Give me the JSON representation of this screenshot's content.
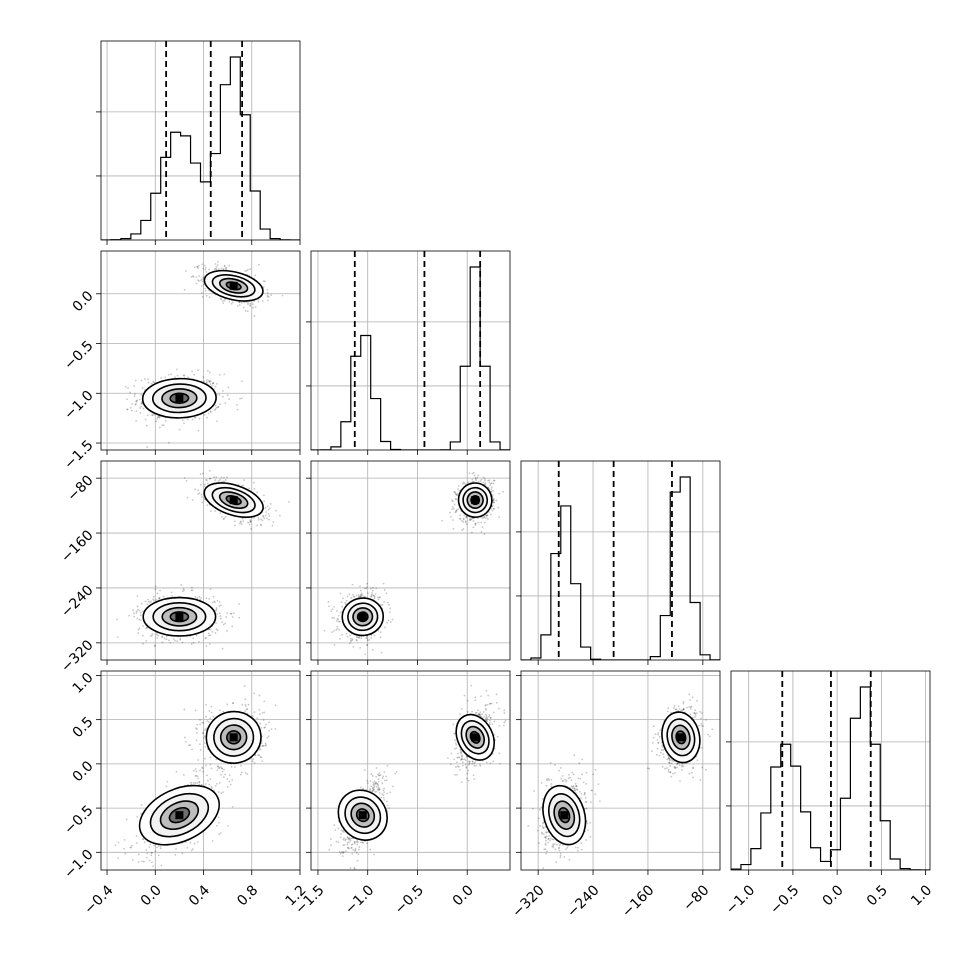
{
  "chart_data": {
    "type": "corner",
    "grid": true,
    "parameters": [
      {
        "range": [
          -0.45,
          1.2
        ],
        "ticks": [
          -0.4,
          0.0,
          0.4,
          0.8,
          1.2
        ],
        "tick_labels": [
          "−0.4",
          "0.0",
          "0.4",
          "0.8",
          "1.2"
        ],
        "quantiles": [
          0.09,
          0.46,
          0.72
        ],
        "modes": [
          {
            "w": 0.45,
            "mu": 0.2,
            "sd": 0.15
          },
          {
            "w": 0.55,
            "mu": 0.65,
            "sd": 0.11
          }
        ]
      },
      {
        "range": [
          -1.57,
          0.43
        ],
        "ticks": [
          -1.5,
          -1.0,
          -0.5,
          0.0
        ],
        "tick_labels": [
          "−1.5",
          "−1.0",
          "−0.5",
          "0.0"
        ],
        "quantiles": [
          -1.13,
          -0.43,
          0.13
        ],
        "modes": [
          {
            "w": 0.45,
            "mu": -1.05,
            "sd": 0.1
          },
          {
            "w": 0.55,
            "mu": 0.08,
            "sd": 0.08
          }
        ]
      },
      {
        "range": [
          -345,
          -55
        ],
        "ticks": [
          -320,
          -240,
          -160,
          -80
        ],
        "tick_labels": [
          "−320",
          "−240",
          "−160",
          "−80"
        ],
        "quantiles": [
          -290,
          -210,
          -125
        ],
        "modes": [
          {
            "w": 0.45,
            "mu": -282,
            "sd": 14
          },
          {
            "w": 0.55,
            "mu": -112,
            "sd": 13
          }
        ]
      },
      {
        "range": [
          -1.2,
          1.05
        ],
        "ticks": [
          -1.0,
          -0.5,
          0.0,
          0.5,
          1.0
        ],
        "tick_labels": [
          "−1.0",
          "−0.5",
          "0.0",
          "0.5",
          "1.0"
        ],
        "quantiles": [
          -0.62,
          -0.07,
          0.38
        ],
        "modes": [
          {
            "w": 0.45,
            "mu": -0.58,
            "sd": 0.18
          },
          {
            "w": 0.55,
            "mu": 0.3,
            "sd": 0.15
          }
        ]
      }
    ]
  }
}
